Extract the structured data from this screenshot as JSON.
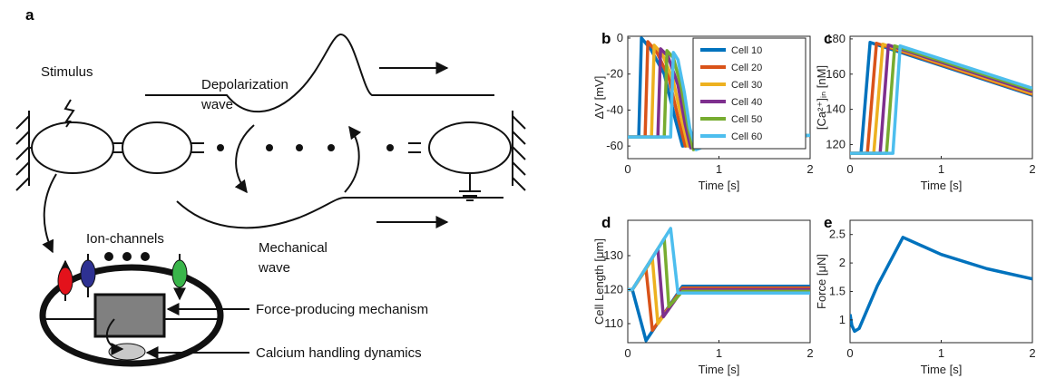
{
  "diagram": {
    "panel": "a",
    "stimulus": "Stimulus",
    "depolarization": [
      "Depolarization",
      "wave"
    ],
    "mechanical": [
      "Mechanical",
      "wave"
    ],
    "ion_channels": "Ion-channels",
    "force_label": "Force-producing mechanism",
    "calcium_label": "Calcium handling dynamics"
  },
  "chart_data": [
    {
      "type": "line",
      "panel": "b",
      "ylabel": "ΔV [mV]",
      "xlabel": "Time [s]",
      "xlim": [
        0,
        2
      ],
      "xticks": [
        0,
        1,
        2
      ],
      "ylim": [
        -67,
        1
      ],
      "yticks": [
        0,
        -20,
        -40,
        -60
      ],
      "legend": "upper right",
      "series": [
        {
          "name": "Cell 10",
          "color": "#0072bd",
          "x": [
            0,
            0.12,
            0.15,
            0.25,
            0.4,
            0.52,
            0.6,
            1,
            2
          ],
          "values": [
            -55,
            -55,
            0,
            -6,
            -20,
            -45,
            -60,
            -57,
            -54
          ]
        },
        {
          "name": "Cell 20",
          "color": "#d95319",
          "x": [
            0,
            0.19,
            0.22,
            0.32,
            0.45,
            0.56,
            0.63,
            1,
            2
          ],
          "values": [
            -55,
            -55,
            -2,
            -8,
            -22,
            -46,
            -60,
            -57,
            -54
          ]
        },
        {
          "name": "Cell 30",
          "color": "#edb120",
          "x": [
            0,
            0.26,
            0.29,
            0.38,
            0.5,
            0.6,
            0.66,
            1,
            2
          ],
          "values": [
            -55,
            -55,
            -4,
            -9,
            -24,
            -47,
            -60,
            -57,
            -54
          ]
        },
        {
          "name": "Cell 40",
          "color": "#7e2f8e",
          "x": [
            0,
            0.33,
            0.36,
            0.44,
            0.55,
            0.63,
            0.69,
            1,
            2
          ],
          "values": [
            -55,
            -55,
            -6,
            -10,
            -26,
            -48,
            -61,
            -57,
            -54
          ]
        },
        {
          "name": "Cell 50",
          "color": "#77ac30",
          "x": [
            0,
            0.4,
            0.43,
            0.5,
            0.59,
            0.66,
            0.72,
            1,
            2
          ],
          "values": [
            -55,
            -55,
            -7,
            -11,
            -28,
            -49,
            -62,
            -57,
            -54
          ]
        },
        {
          "name": "Cell 60",
          "color": "#4dbeee",
          "x": [
            0,
            0.47,
            0.5,
            0.55,
            0.62,
            0.68,
            0.75,
            1,
            2
          ],
          "values": [
            -55,
            -55,
            -8,
            -12,
            -30,
            -50,
            -62,
            -57,
            -54
          ]
        }
      ]
    },
    {
      "type": "line",
      "panel": "c",
      "ylabel": "[Ca²⁺]ᵢₙ [nM]",
      "xlabel": "Time [s]",
      "xlim": [
        0,
        2
      ],
      "xticks": [
        0,
        1,
        2
      ],
      "ylim": [
        112,
        181.5
      ],
      "yticks": [
        120,
        140,
        160,
        180
      ],
      "series": [
        {
          "color": "#0072bd",
          "x": [
            0,
            0.12,
            0.22,
            2
          ],
          "values": [
            115,
            115,
            178,
            148
          ]
        },
        {
          "color": "#d95319",
          "x": [
            0,
            0.19,
            0.29,
            2
          ],
          "values": [
            115,
            115,
            177.5,
            148.5
          ]
        },
        {
          "color": "#edb120",
          "x": [
            0,
            0.26,
            0.36,
            2
          ],
          "values": [
            115,
            115,
            177,
            149
          ]
        },
        {
          "color": "#7e2f8e",
          "x": [
            0,
            0.33,
            0.42,
            2
          ],
          "values": [
            115,
            115,
            176.5,
            150
          ]
        },
        {
          "color": "#77ac30",
          "x": [
            0,
            0.4,
            0.49,
            2
          ],
          "values": [
            115,
            115,
            176,
            151
          ]
        },
        {
          "color": "#4dbeee",
          "x": [
            0,
            0.47,
            0.55,
            2
          ],
          "values": [
            115,
            115,
            176,
            152
          ]
        }
      ]
    },
    {
      "type": "line",
      "panel": "d",
      "ylabel": "Cell Length [μm]",
      "xlabel": "Time [s]",
      "xlim": [
        0,
        2
      ],
      "xticks": [
        0,
        1,
        2
      ],
      "ylim": [
        104.4,
        140.4
      ],
      "yticks": [
        110,
        120,
        130
      ],
      "series": [
        {
          "color": "#0072bd",
          "x": [
            0,
            0.05,
            0.2,
            0.6,
            2
          ],
          "values": [
            120,
            120,
            105,
            121,
            121
          ]
        },
        {
          "color": "#d95319",
          "x": [
            0,
            0.05,
            0.2,
            0.27,
            0.6,
            2
          ],
          "values": [
            120,
            120,
            126,
            108,
            120.5,
            120.5
          ]
        },
        {
          "color": "#edb120",
          "x": [
            0,
            0.05,
            0.27,
            0.33,
            0.6,
            2
          ],
          "values": [
            120,
            120,
            129,
            110,
            120,
            120
          ]
        },
        {
          "color": "#7e2f8e",
          "x": [
            0,
            0.05,
            0.33,
            0.39,
            0.6,
            2
          ],
          "values": [
            120,
            120,
            132,
            112,
            120,
            120
          ]
        },
        {
          "color": "#77ac30",
          "x": [
            0,
            0.05,
            0.4,
            0.45,
            0.6,
            2
          ],
          "values": [
            120,
            120,
            135,
            115,
            119.5,
            119.5
          ]
        },
        {
          "color": "#4dbeee",
          "x": [
            0,
            0.05,
            0.47,
            0.55,
            2
          ],
          "values": [
            120,
            120,
            138,
            119,
            119
          ]
        }
      ]
    },
    {
      "type": "line",
      "panel": "e",
      "ylabel": "Force [μN]",
      "xlabel": "Time [s]",
      "xlim": [
        0,
        2
      ],
      "xticks": [
        0,
        1,
        2
      ],
      "ylim": [
        0.6,
        2.75
      ],
      "yticks": [
        1,
        1.5,
        2,
        2.5
      ],
      "series": [
        {
          "color": "#0072bd",
          "x": [
            0,
            0.02,
            0.05,
            0.1,
            0.3,
            0.58,
            1,
            1.5,
            2
          ],
          "values": [
            1.1,
            0.9,
            0.8,
            0.85,
            1.6,
            2.45,
            2.15,
            1.9,
            1.72
          ]
        }
      ]
    }
  ]
}
